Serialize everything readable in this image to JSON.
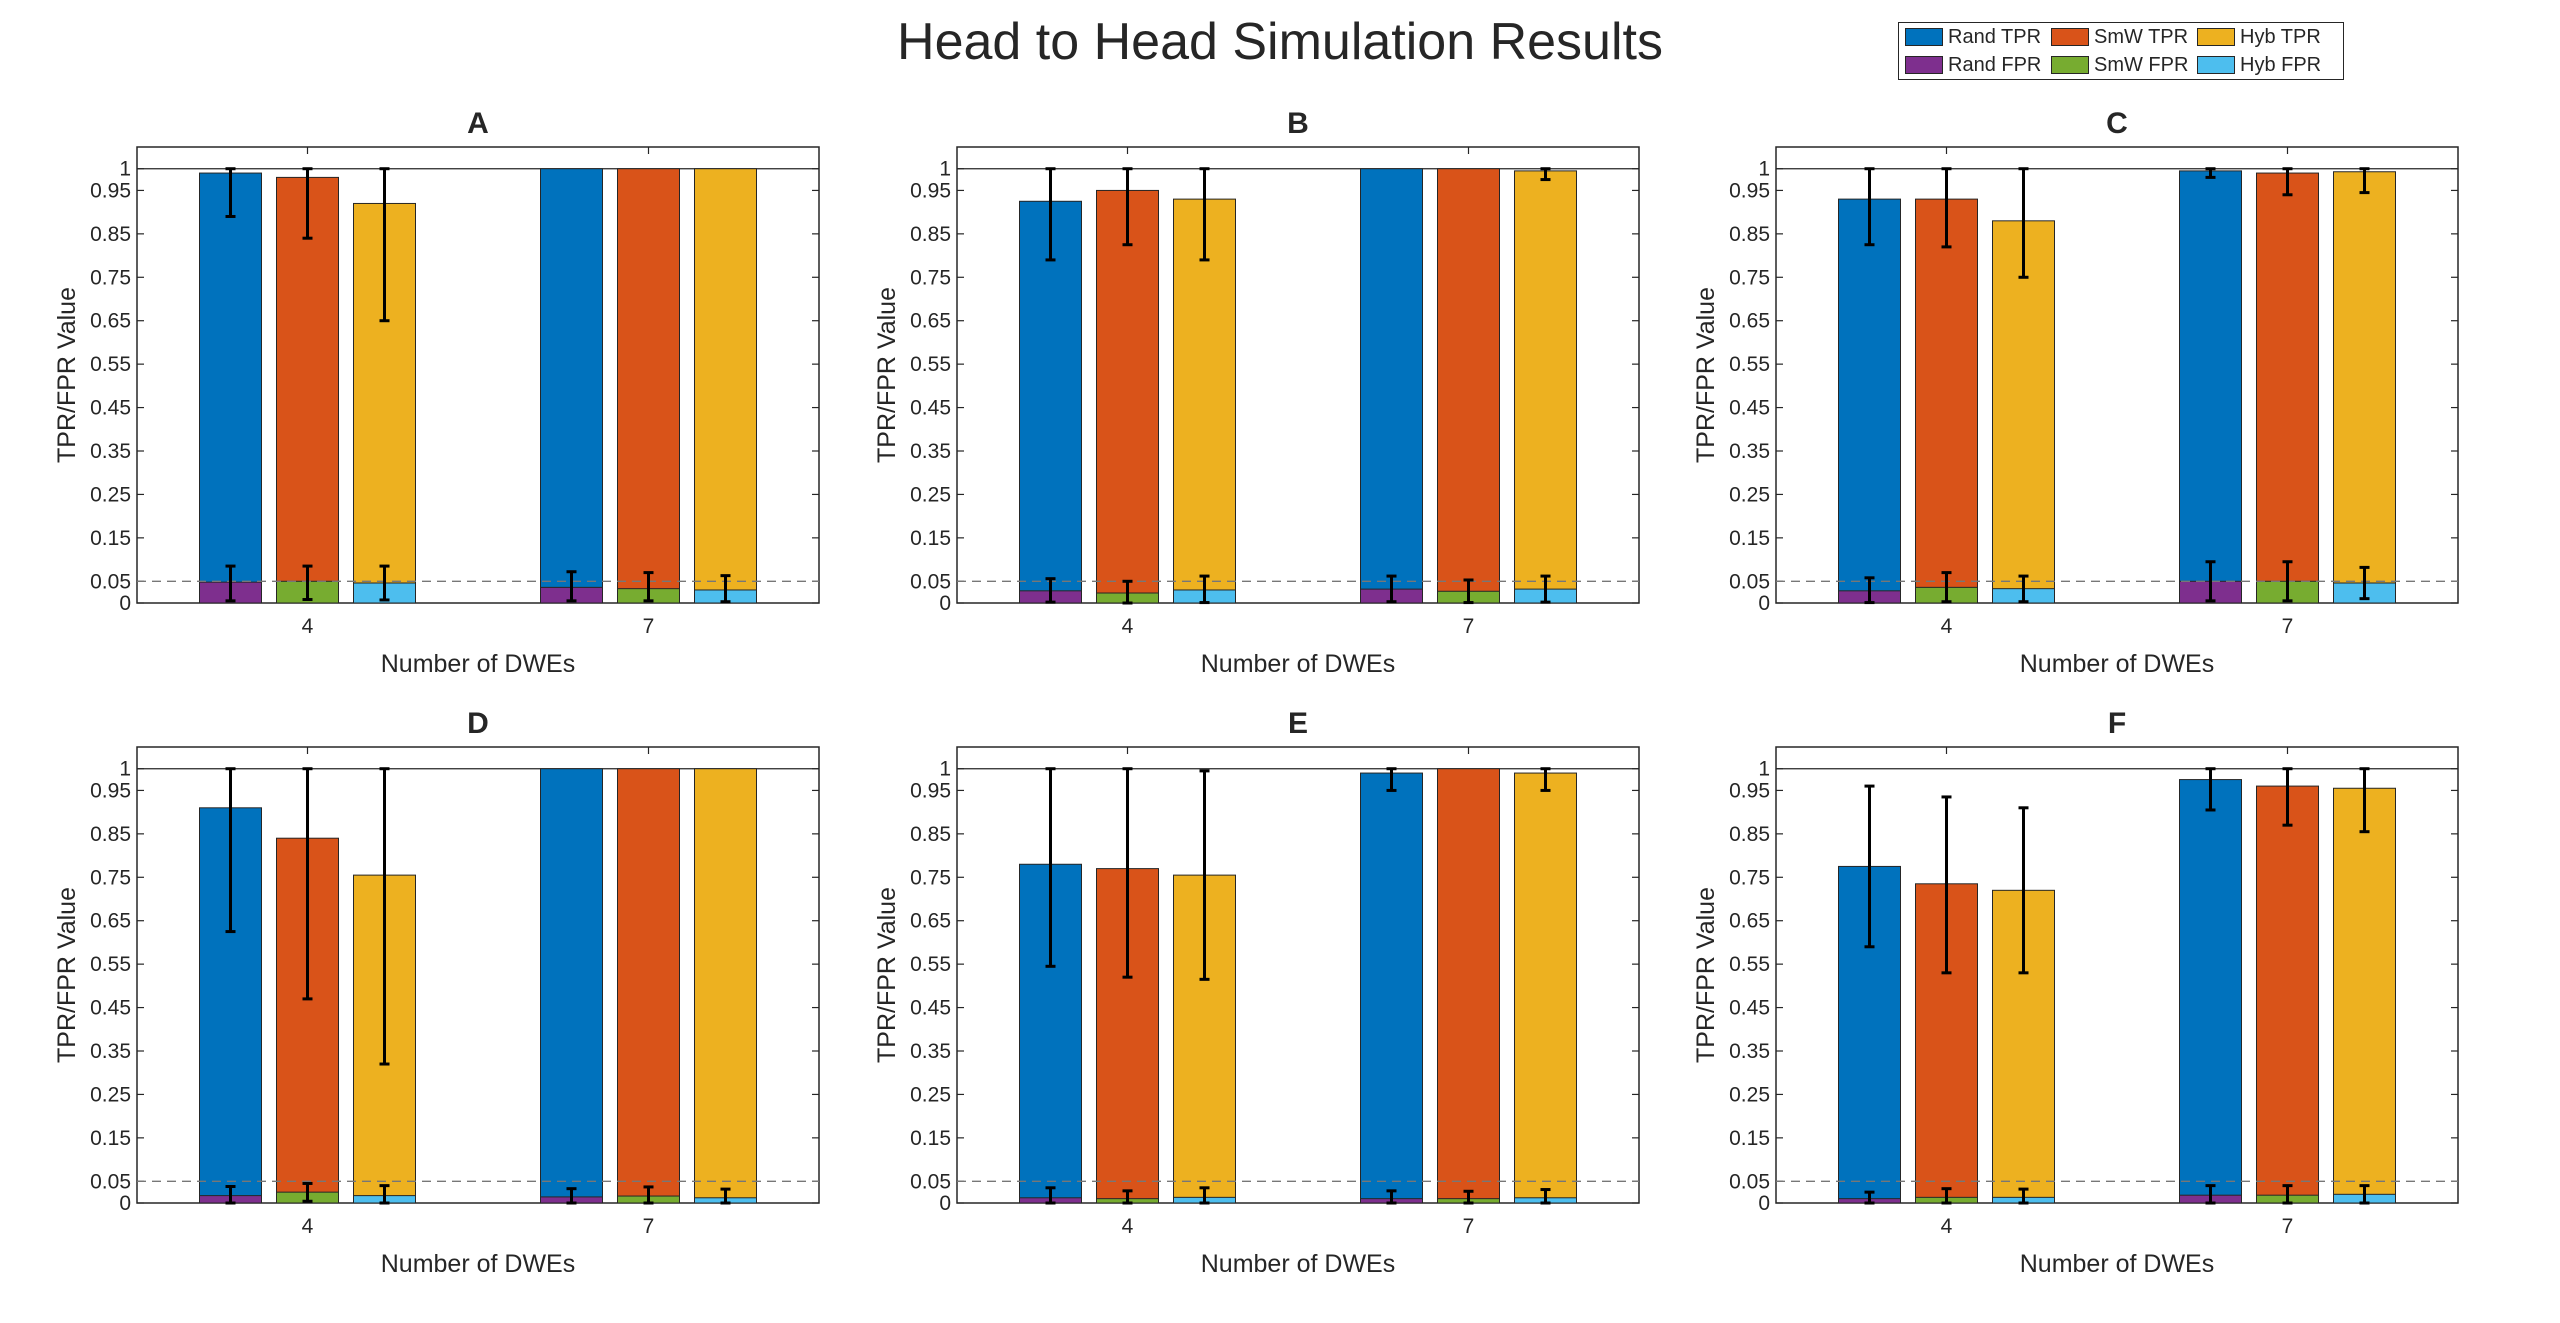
{
  "title": "Head to Head Simulation Results",
  "legend": [
    {
      "label": "Rand TPR",
      "color": "#0072BD"
    },
    {
      "label": "SmW TPR",
      "color": "#D95319"
    },
    {
      "label": "Hyb TPR",
      "color": "#EDB120"
    },
    {
      "label": "Rand FPR",
      "color": "#7E2F8E"
    },
    {
      "label": "SmW FPR",
      "color": "#77AC30"
    },
    {
      "label": "Hyb FPR",
      "color": "#4DBEEE"
    }
  ],
  "chart_data": [
    {
      "type": "bar",
      "title": "A",
      "xlabel": "Number of DWEs",
      "ylabel": "TPR/FPR Value",
      "categories": [
        "4",
        "7"
      ],
      "ylim": [
        0,
        1.05
      ],
      "yticks": [
        0,
        0.05,
        0.15,
        0.25,
        0.35,
        0.45,
        0.55,
        0.65,
        0.75,
        0.85,
        0.95,
        1
      ],
      "ytick_labels": [
        "0",
        "0.05",
        "0.15",
        "0.25",
        "0.35",
        "0.45",
        "0.55",
        "0.65",
        "0.75",
        "0.85",
        "0.95",
        "1"
      ],
      "reference_lines": [
        0.05,
        1
      ],
      "series": [
        {
          "name": "Rand TPR",
          "values": [
            0.99,
            1.0
          ],
          "lower": [
            0.89,
            1.0
          ],
          "upper": [
            1.0,
            1.0
          ]
        },
        {
          "name": "SmW TPR",
          "values": [
            0.98,
            1.0
          ],
          "lower": [
            0.84,
            1.0
          ],
          "upper": [
            1.0,
            1.0
          ]
        },
        {
          "name": "Hyb TPR",
          "values": [
            0.92,
            1.0
          ],
          "lower": [
            0.65,
            1.0
          ],
          "upper": [
            1.0,
            1.0
          ]
        },
        {
          "name": "Rand FPR",
          "values": [
            0.048,
            0.036
          ],
          "lower": [
            0.005,
            0.005
          ],
          "upper": [
            0.085,
            0.072
          ]
        },
        {
          "name": "SmW FPR",
          "values": [
            0.05,
            0.033
          ],
          "lower": [
            0.008,
            0.005
          ],
          "upper": [
            0.085,
            0.07
          ]
        },
        {
          "name": "Hyb FPR",
          "values": [
            0.046,
            0.03
          ],
          "lower": [
            0.007,
            0.003
          ],
          "upper": [
            0.085,
            0.063
          ]
        }
      ]
    },
    {
      "type": "bar",
      "title": "B",
      "xlabel": "Number of DWEs",
      "ylabel": "TPR/FPR Value",
      "categories": [
        "4",
        "7"
      ],
      "ylim": [
        0,
        1.05
      ],
      "yticks": [
        0,
        0.05,
        0.15,
        0.25,
        0.35,
        0.45,
        0.55,
        0.65,
        0.75,
        0.85,
        0.95,
        1
      ],
      "ytick_labels": [
        "0",
        "0.05",
        "0.15",
        "0.25",
        "0.35",
        "0.45",
        "0.55",
        "0.65",
        "0.75",
        "0.85",
        "0.95",
        "1"
      ],
      "reference_lines": [
        0.05,
        1
      ],
      "series": [
        {
          "name": "Rand TPR",
          "values": [
            0.925,
            1.0
          ],
          "lower": [
            0.79,
            1.0
          ],
          "upper": [
            1.0,
            1.0
          ]
        },
        {
          "name": "SmW TPR",
          "values": [
            0.95,
            1.0
          ],
          "lower": [
            0.825,
            1.0
          ],
          "upper": [
            1.0,
            1.0
          ]
        },
        {
          "name": "Hyb TPR",
          "values": [
            0.93,
            0.995
          ],
          "lower": [
            0.79,
            0.975
          ],
          "upper": [
            1.0,
            1.0
          ]
        },
        {
          "name": "Rand FPR",
          "values": [
            0.028,
            0.032
          ],
          "lower": [
            0.002,
            0.003
          ],
          "upper": [
            0.056,
            0.062
          ]
        },
        {
          "name": "SmW FPR",
          "values": [
            0.023,
            0.027
          ],
          "lower": [
            0.0,
            0.001
          ],
          "upper": [
            0.05,
            0.053
          ]
        },
        {
          "name": "Hyb FPR",
          "values": [
            0.03,
            0.032
          ],
          "lower": [
            0.001,
            0.002
          ],
          "upper": [
            0.062,
            0.062
          ]
        }
      ]
    },
    {
      "type": "bar",
      "title": "C",
      "xlabel": "Number of DWEs",
      "ylabel": "TPR/FPR Value",
      "categories": [
        "4",
        "7"
      ],
      "ylim": [
        0,
        1.05
      ],
      "yticks": [
        0,
        0.05,
        0.15,
        0.25,
        0.35,
        0.45,
        0.55,
        0.65,
        0.75,
        0.85,
        0.95,
        1
      ],
      "ytick_labels": [
        "0",
        "0.05",
        "0.15",
        "0.25",
        "0.35",
        "0.45",
        "0.55",
        "0.65",
        "0.75",
        "0.85",
        "0.95",
        "1"
      ],
      "reference_lines": [
        0.05,
        1
      ],
      "series": [
        {
          "name": "Rand TPR",
          "values": [
            0.93,
            0.995
          ],
          "lower": [
            0.825,
            0.98
          ],
          "upper": [
            1.0,
            1.0
          ]
        },
        {
          "name": "SmW TPR",
          "values": [
            0.93,
            0.99
          ],
          "lower": [
            0.82,
            0.94
          ],
          "upper": [
            1.0,
            1.0
          ]
        },
        {
          "name": "Hyb TPR",
          "values": [
            0.88,
            0.993
          ],
          "lower": [
            0.75,
            0.945
          ],
          "upper": [
            1.0,
            1.0
          ]
        },
        {
          "name": "Rand FPR",
          "values": [
            0.028,
            0.05
          ],
          "lower": [
            0.001,
            0.005
          ],
          "upper": [
            0.058,
            0.095
          ]
        },
        {
          "name": "SmW FPR",
          "values": [
            0.036,
            0.05
          ],
          "lower": [
            0.003,
            0.005
          ],
          "upper": [
            0.07,
            0.095
          ]
        },
        {
          "name": "Hyb FPR",
          "values": [
            0.033,
            0.046
          ],
          "lower": [
            0.003,
            0.01
          ],
          "upper": [
            0.062,
            0.082
          ]
        }
      ]
    },
    {
      "type": "bar",
      "title": "D",
      "xlabel": "Number of DWEs",
      "ylabel": "TPR/FPR Value",
      "categories": [
        "4",
        "7"
      ],
      "ylim": [
        0,
        1.05
      ],
      "yticks": [
        0,
        0.05,
        0.15,
        0.25,
        0.35,
        0.45,
        0.55,
        0.65,
        0.75,
        0.85,
        0.95,
        1
      ],
      "ytick_labels": [
        "0",
        "0.05",
        "0.15",
        "0.25",
        "0.35",
        "0.45",
        "0.55",
        "0.65",
        "0.75",
        "0.85",
        "0.95",
        "1"
      ],
      "reference_lines": [
        0.05,
        1
      ],
      "series": [
        {
          "name": "Rand TPR",
          "values": [
            0.91,
            1.0
          ],
          "lower": [
            0.625,
            1.0
          ],
          "upper": [
            1.0,
            1.0
          ]
        },
        {
          "name": "SmW TPR",
          "values": [
            0.84,
            1.0
          ],
          "lower": [
            0.47,
            1.0
          ],
          "upper": [
            1.0,
            1.0
          ]
        },
        {
          "name": "Hyb TPR",
          "values": [
            0.755,
            1.0
          ],
          "lower": [
            0.32,
            1.0
          ],
          "upper": [
            1.0,
            1.0
          ]
        },
        {
          "name": "Rand FPR",
          "values": [
            0.017,
            0.014
          ],
          "lower": [
            0.0,
            0.0
          ],
          "upper": [
            0.038,
            0.033
          ]
        },
        {
          "name": "SmW FPR",
          "values": [
            0.025,
            0.016
          ],
          "lower": [
            0.004,
            0.0
          ],
          "upper": [
            0.045,
            0.037
          ]
        },
        {
          "name": "Hyb FPR",
          "values": [
            0.017,
            0.012
          ],
          "lower": [
            0.0,
            0.0
          ],
          "upper": [
            0.04,
            0.032
          ]
        }
      ]
    },
    {
      "type": "bar",
      "title": "E",
      "xlabel": "Number of DWEs",
      "ylabel": "TPR/FPR Value",
      "categories": [
        "4",
        "7"
      ],
      "ylim": [
        0,
        1.05
      ],
      "yticks": [
        0,
        0.05,
        0.15,
        0.25,
        0.35,
        0.45,
        0.55,
        0.65,
        0.75,
        0.85,
        0.95,
        1
      ],
      "ytick_labels": [
        "0",
        "0.05",
        "0.15",
        "0.25",
        "0.35",
        "0.45",
        "0.55",
        "0.65",
        "0.75",
        "0.85",
        "0.95",
        "1"
      ],
      "reference_lines": [
        0.05,
        1
      ],
      "series": [
        {
          "name": "Rand TPR",
          "values": [
            0.78,
            0.99
          ],
          "lower": [
            0.545,
            0.95
          ],
          "upper": [
            1.0,
            1.0
          ]
        },
        {
          "name": "SmW TPR",
          "values": [
            0.77,
            1.0
          ],
          "lower": [
            0.52,
            1.0
          ],
          "upper": [
            1.0,
            1.0
          ]
        },
        {
          "name": "Hyb TPR",
          "values": [
            0.755,
            0.99
          ],
          "lower": [
            0.515,
            0.95
          ],
          "upper": [
            0.995,
            1.0
          ]
        },
        {
          "name": "Rand FPR",
          "values": [
            0.012,
            0.01
          ],
          "lower": [
            0.0,
            0.0
          ],
          "upper": [
            0.035,
            0.028
          ]
        },
        {
          "name": "SmW FPR",
          "values": [
            0.01,
            0.01
          ],
          "lower": [
            0.0,
            0.0
          ],
          "upper": [
            0.028,
            0.027
          ]
        },
        {
          "name": "Hyb FPR",
          "values": [
            0.013,
            0.012
          ],
          "lower": [
            0.0,
            0.0
          ],
          "upper": [
            0.035,
            0.031
          ]
        }
      ]
    },
    {
      "type": "bar",
      "title": "F",
      "xlabel": "Number of DWEs",
      "ylabel": "TPR/FPR Value",
      "categories": [
        "4",
        "7"
      ],
      "ylim": [
        0,
        1.05
      ],
      "yticks": [
        0,
        0.05,
        0.15,
        0.25,
        0.35,
        0.45,
        0.55,
        0.65,
        0.75,
        0.85,
        0.95,
        1
      ],
      "ytick_labels": [
        "0",
        "0.05",
        "0.15",
        "0.25",
        "0.35",
        "0.45",
        "0.55",
        "0.65",
        "0.75",
        "0.85",
        "0.95",
        "1"
      ],
      "reference_lines": [
        0.05,
        1
      ],
      "series": [
        {
          "name": "Rand TPR",
          "values": [
            0.775,
            0.975
          ],
          "lower": [
            0.59,
            0.905
          ],
          "upper": [
            0.96,
            1.0
          ]
        },
        {
          "name": "SmW TPR",
          "values": [
            0.735,
            0.96
          ],
          "lower": [
            0.53,
            0.87
          ],
          "upper": [
            0.935,
            1.0
          ]
        },
        {
          "name": "Hyb TPR",
          "values": [
            0.72,
            0.955
          ],
          "lower": [
            0.53,
            0.855
          ],
          "upper": [
            0.91,
            1.0
          ]
        },
        {
          "name": "Rand FPR",
          "values": [
            0.01,
            0.018
          ],
          "lower": [
            0.0,
            0.0
          ],
          "upper": [
            0.025,
            0.04
          ]
        },
        {
          "name": "SmW FPR",
          "values": [
            0.013,
            0.018
          ],
          "lower": [
            0.0,
            0.0
          ],
          "upper": [
            0.033,
            0.04
          ]
        },
        {
          "name": "Hyb FPR",
          "values": [
            0.013,
            0.02
          ],
          "lower": [
            0.0,
            0.0
          ],
          "upper": [
            0.032,
            0.04
          ]
        }
      ]
    }
  ]
}
